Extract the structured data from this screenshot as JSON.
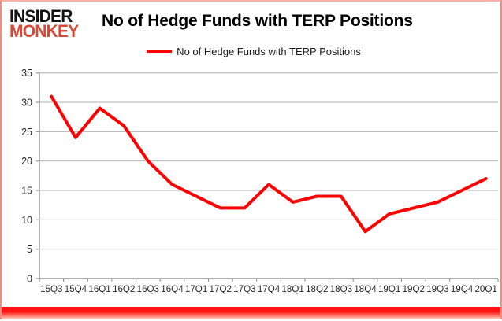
{
  "branding": {
    "logo_line1": "INSIDER",
    "logo_line2": "MONKEY",
    "logo_color1": "#141414",
    "logo_color2": "#db4936"
  },
  "header": {
    "title": "No of Hedge Funds with TERP Positions"
  },
  "legend": {
    "label": "No of Hedge Funds with TERP Positions",
    "line_color": "#ff0000"
  },
  "chart_data": {
    "type": "line",
    "title": "No of Hedge Funds with TERP Positions",
    "categories": [
      "15Q3",
      "15Q4",
      "16Q1",
      "16Q2",
      "16Q3",
      "16Q4",
      "17Q1",
      "17Q2",
      "17Q3",
      "17Q4",
      "18Q1",
      "18Q2",
      "18Q3",
      "18Q4",
      "19Q1",
      "19Q2",
      "19Q3",
      "19Q4",
      "20Q1"
    ],
    "series": [
      {
        "name": "No of Hedge Funds with TERP Positions",
        "color": "#ff0000",
        "values": [
          31,
          24,
          29,
          26,
          20,
          16,
          14,
          12,
          12,
          16,
          13,
          14,
          14,
          8,
          11,
          12,
          13,
          15,
          17
        ]
      }
    ],
    "xlabel": "",
    "ylabel": "",
    "ylim": [
      0,
      35
    ],
    "y_ticks": [
      0,
      5,
      10,
      15,
      20,
      25,
      30,
      35
    ],
    "grid": "horizontal",
    "legend_position": "top",
    "colors": {
      "gridline": "#b3b3b3",
      "axis": "#808080",
      "tick_label": "#262626"
    }
  }
}
